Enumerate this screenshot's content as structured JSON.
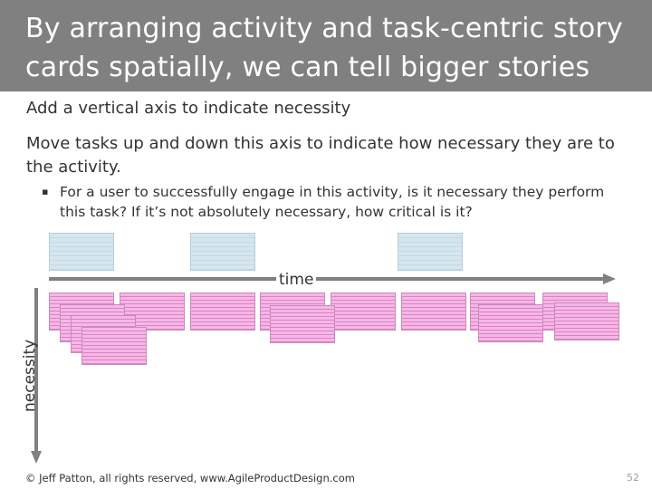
{
  "slide": {
    "title": "By arranging activity and task-centric story cards spatially, we can tell bigger stories",
    "bullets": [
      "Add a vertical axis to indicate necessity",
      "Move tasks up and down this axis to indicate how necessary they are to the activity."
    ],
    "sub_bullet_marker": "▪",
    "sub_bullet": "For a user to successfully engage in this activity, is it necessary they perform this task?  If it’s not absolutely necessary, how critical is it?",
    "diagram": {
      "time_label": "time",
      "necessity_label": "necessity",
      "activity_card_color": "#d5e6ef",
      "task_card_color": "#f4b8e4",
      "arrow_color": "#808080"
    },
    "footer": "© Jeff Patton, all rights reserved, www.AgileProductDesign.com",
    "page_number": "52"
  }
}
